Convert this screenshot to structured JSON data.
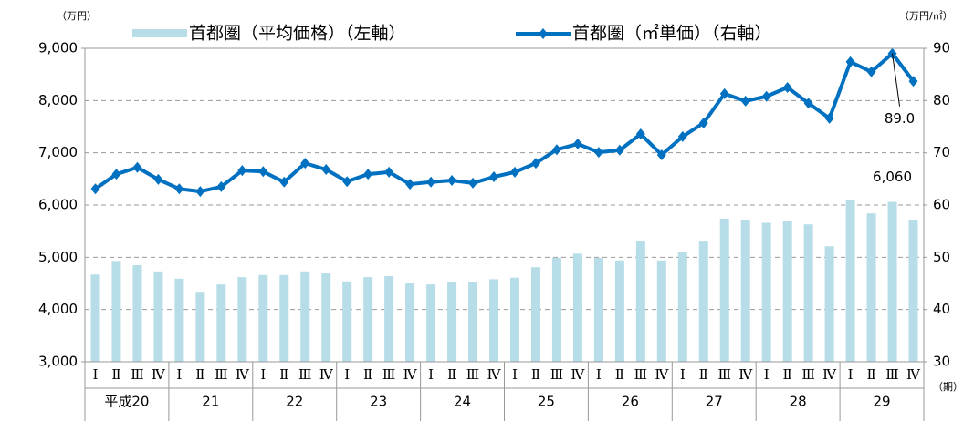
{
  "chart_data": {
    "type": "bar",
    "left_unit": "（万円）",
    "right_unit": "（万円/㎡）",
    "x_unit": "（期）",
    "categories": [
      "Ⅰ",
      "Ⅱ",
      "Ⅲ",
      "Ⅳ",
      "Ⅰ",
      "Ⅱ",
      "Ⅲ",
      "Ⅳ",
      "Ⅰ",
      "Ⅱ",
      "Ⅲ",
      "Ⅳ",
      "Ⅰ",
      "Ⅱ",
      "Ⅲ",
      "Ⅳ",
      "Ⅰ",
      "Ⅱ",
      "Ⅲ",
      "Ⅳ",
      "Ⅰ",
      "Ⅱ",
      "Ⅲ",
      "Ⅳ",
      "Ⅰ",
      "Ⅱ",
      "Ⅲ",
      "Ⅳ",
      "Ⅰ",
      "Ⅱ",
      "Ⅲ",
      "Ⅳ",
      "Ⅰ",
      "Ⅱ",
      "Ⅲ",
      "Ⅳ",
      "Ⅰ",
      "Ⅱ",
      "Ⅲ",
      "Ⅳ"
    ],
    "groups": [
      "平成20",
      "21",
      "22",
      "23",
      "24",
      "25",
      "26",
      "27",
      "28",
      "29"
    ],
    "series": [
      {
        "name": "首都圏（平均価格）（左軸）",
        "type": "bar",
        "color": "#b7dde8",
        "values": [
          4670,
          4930,
          4850,
          4730,
          4590,
          4340,
          4480,
          4620,
          4660,
          4660,
          4730,
          4690,
          4540,
          4620,
          4640,
          4500,
          4480,
          4530,
          4520,
          4580,
          4610,
          4810,
          4990,
          5070,
          4990,
          4940,
          5320,
          4940,
          5110,
          5300,
          5740,
          5720,
          5660,
          5700,
          5630,
          5210,
          6090,
          5840,
          6060,
          5720
        ],
        "value_labels": [
          null,
          null,
          null,
          null,
          null,
          null,
          null,
          null,
          null,
          null,
          null,
          null,
          null,
          null,
          null,
          null,
          null,
          null,
          null,
          null,
          null,
          null,
          null,
          null,
          null,
          null,
          null,
          null,
          null,
          null,
          null,
          null,
          null,
          null,
          null,
          null,
          null,
          null,
          "6,060",
          null
        ]
      },
      {
        "name": "首都圏（㎡単価）（右軸）",
        "type": "line",
        "axis": "y2",
        "color": "#0070c0",
        "values": [
          63.1,
          65.9,
          67.2,
          64.9,
          63.1,
          62.6,
          63.5,
          66.6,
          66.4,
          64.4,
          68.0,
          66.8,
          64.5,
          65.9,
          66.3,
          64.0,
          64.4,
          64.7,
          64.2,
          65.4,
          66.3,
          68.0,
          70.6,
          71.7,
          70.1,
          70.5,
          73.6,
          69.6,
          73.1,
          75.7,
          81.3,
          79.9,
          80.8,
          82.5,
          79.5,
          76.6,
          87.4,
          85.5,
          89.0,
          83.7
        ],
        "value_labels": [
          null,
          null,
          null,
          null,
          null,
          null,
          null,
          null,
          null,
          null,
          null,
          null,
          null,
          null,
          null,
          null,
          null,
          null,
          null,
          null,
          null,
          null,
          null,
          null,
          null,
          null,
          null,
          null,
          null,
          null,
          null,
          null,
          null,
          null,
          null,
          null,
          null,
          null,
          "89.0",
          null
        ]
      }
    ],
    "ylim": [
      3000,
      9000
    ],
    "yticks": [
      {
        "value": 3000,
        "label": "3,000"
      },
      {
        "value": 4000,
        "label": "4,000"
      },
      {
        "value": 5000,
        "label": "5,000"
      },
      {
        "value": 6000,
        "label": "6,000"
      },
      {
        "value": 7000,
        "label": "7,000"
      },
      {
        "value": 8000,
        "label": "8,000"
      },
      {
        "value": 9000,
        "label": "9,000"
      }
    ],
    "y2lim": [
      30,
      90
    ],
    "y2ticks": [
      30,
      40,
      50,
      60,
      70,
      80,
      90
    ],
    "grid": true
  }
}
